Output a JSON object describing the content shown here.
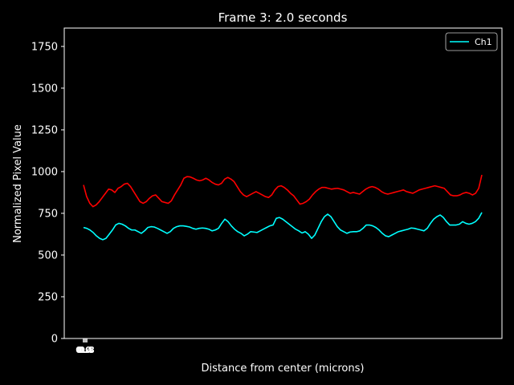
{
  "chart_data": {
    "type": "line",
    "title": "Frame 3: 2.0 seconds",
    "xlabel": "Distance from center (microns)",
    "ylabel": "Normalized Pixel Value",
    "ylim": [
      0,
      1860
    ],
    "yticks": [
      0,
      250,
      500,
      750,
      1000,
      1250,
      1500,
      1750
    ],
    "xticks": [
      "0.0",
      "0.4",
      "0.8"
    ],
    "grid": false,
    "legend": {
      "placement": "top-right",
      "entries": [
        "Ch1"
      ]
    },
    "series": [
      {
        "name": "Ch1",
        "color": "#00ffff",
        "values": [
          665,
          660,
          650,
          635,
          615,
          600,
          592,
          600,
          625,
          650,
          680,
          690,
          685,
          675,
          660,
          650,
          650,
          640,
          630,
          645,
          665,
          670,
          668,
          660,
          650,
          640,
          630,
          640,
          660,
          670,
          675,
          675,
          672,
          668,
          660,
          655,
          660,
          662,
          660,
          655,
          645,
          650,
          660,
          690,
          715,
          700,
          675,
          655,
          640,
          630,
          615,
          625,
          640,
          638,
          635,
          645,
          655,
          665,
          675,
          680,
          720,
          725,
          715,
          700,
          685,
          670,
          655,
          645,
          632,
          640,
          625,
          600,
          620,
          660,
          700,
          730,
          745,
          730,
          700,
          670,
          650,
          640,
          630,
          638,
          640,
          640,
          645,
          660,
          680,
          680,
          675,
          665,
          650,
          630,
          615,
          610,
          620,
          630,
          640,
          645,
          650,
          655,
          662,
          660,
          655,
          650,
          645,
          660,
          690,
          715,
          730,
          740,
          725,
          700,
          680,
          680,
          680,
          685,
          700,
          690,
          685,
          690,
          700,
          720,
          755
        ]
      },
      {
        "color": "#ff0000",
        "values": [
          920,
          850,
          810,
          790,
          800,
          820,
          845,
          870,
          895,
          890,
          875,
          900,
          910,
          925,
          930,
          910,
          880,
          850,
          820,
          810,
          820,
          840,
          855,
          860,
          840,
          820,
          815,
          810,
          825,
          860,
          890,
          920,
          960,
          970,
          968,
          960,
          950,
          945,
          950,
          960,
          950,
          935,
          925,
          920,
          930,
          955,
          965,
          955,
          940,
          910,
          880,
          860,
          850,
          860,
          870,
          880,
          870,
          860,
          850,
          845,
          860,
          890,
          910,
          915,
          905,
          890,
          870,
          855,
          830,
          805,
          810,
          820,
          835,
          860,
          880,
          895,
          905,
          905,
          900,
          895,
          898,
          900,
          895,
          890,
          880,
          870,
          875,
          870,
          865,
          880,
          895,
          905,
          910,
          905,
          895,
          880,
          870,
          865,
          870,
          875,
          880,
          885,
          890,
          880,
          875,
          870,
          880,
          890,
          895,
          900,
          905,
          910,
          915,
          910,
          905,
          900,
          880,
          860,
          855,
          855,
          860,
          870,
          875,
          870,
          860,
          870,
          900,
          980
        ]
      }
    ]
  }
}
